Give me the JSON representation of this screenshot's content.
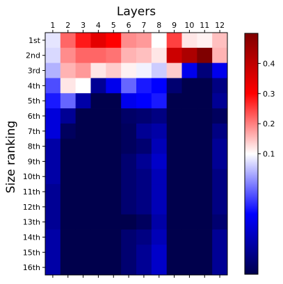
{
  "chart_data": {
    "type": "heatmap",
    "title": "Layers",
    "ylabel": "Size ranking",
    "x_categories": [
      "1",
      "2",
      "3",
      "4",
      "5",
      "6",
      "7",
      "8",
      "9",
      "10",
      "11",
      "12"
    ],
    "y_categories": [
      "1st",
      "2nd",
      "3rd",
      "4th",
      "5th",
      "6th",
      "7th",
      "8th",
      "9th",
      "10th",
      "11th",
      "12th",
      "13th",
      "14th",
      "15th",
      "16th"
    ],
    "colormap": "seismic",
    "color_range": [
      -0.3,
      0.5
    ],
    "colorbar_ticks": [
      0.1,
      0.2,
      0.3,
      0.4
    ],
    "values": [
      [
        0.08,
        0.22,
        0.28,
        0.34,
        0.3,
        0.19,
        0.18,
        0.1,
        0.25,
        0.12,
        0.11,
        0.15
      ],
      [
        0.07,
        0.19,
        0.22,
        0.22,
        0.21,
        0.16,
        0.15,
        0.12,
        0.38,
        0.43,
        0.5,
        0.16
      ],
      [
        0.04,
        0.16,
        0.18,
        0.12,
        0.14,
        0.11,
        0.09,
        0.06,
        0.14,
        -0.12,
        -0.25,
        -0.12
      ],
      [
        -0.04,
        0.12,
        0.1,
        -0.22,
        -0.12,
        -0.02,
        -0.08,
        -0.1,
        -0.26,
        -0.32,
        -0.36,
        -0.24
      ],
      [
        -0.08,
        -0.02,
        -0.2,
        -0.3,
        -0.3,
        -0.12,
        -0.1,
        -0.08,
        -0.32,
        -0.34,
        -0.36,
        -0.22
      ],
      [
        -0.14,
        -0.22,
        -0.32,
        -0.36,
        -0.34,
        -0.27,
        -0.26,
        -0.24,
        -0.36,
        -0.4,
        -0.42,
        -0.28
      ],
      [
        -0.14,
        -0.28,
        -0.34,
        -0.38,
        -0.36,
        -0.28,
        -0.22,
        -0.2,
        -0.36,
        -0.36,
        -0.38,
        -0.24
      ],
      [
        -0.2,
        -0.32,
        -0.36,
        -0.38,
        -0.36,
        -0.28,
        -0.26,
        -0.18,
        -0.36,
        -0.36,
        -0.38,
        -0.22
      ],
      [
        -0.2,
        -0.32,
        -0.36,
        -0.38,
        -0.36,
        -0.26,
        -0.22,
        -0.16,
        -0.34,
        -0.36,
        -0.38,
        -0.22
      ],
      [
        -0.2,
        -0.32,
        -0.38,
        -0.38,
        -0.36,
        -0.26,
        -0.24,
        -0.18,
        -0.36,
        -0.36,
        -0.38,
        -0.24
      ],
      [
        -0.22,
        -0.32,
        -0.38,
        -0.38,
        -0.36,
        -0.26,
        -0.24,
        -0.18,
        -0.36,
        -0.36,
        -0.38,
        -0.24
      ],
      [
        -0.22,
        -0.32,
        -0.38,
        -0.38,
        -0.36,
        -0.26,
        -0.24,
        -0.18,
        -0.36,
        -0.36,
        -0.38,
        -0.24
      ],
      [
        -0.22,
        -0.32,
        -0.4,
        -0.38,
        -0.36,
        -0.3,
        -0.28,
        -0.2,
        -0.36,
        -0.38,
        -0.38,
        -0.26
      ],
      [
        -0.2,
        -0.32,
        -0.38,
        -0.38,
        -0.36,
        -0.26,
        -0.24,
        -0.18,
        -0.36,
        -0.36,
        -0.38,
        -0.22
      ],
      [
        -0.2,
        -0.32,
        -0.36,
        -0.38,
        -0.36,
        -0.26,
        -0.22,
        -0.16,
        -0.36,
        -0.36,
        -0.38,
        -0.22
      ],
      [
        -0.2,
        -0.32,
        -0.38,
        -0.38,
        -0.36,
        -0.26,
        -0.22,
        -0.16,
        -0.36,
        -0.36,
        -0.38,
        -0.22
      ]
    ]
  }
}
